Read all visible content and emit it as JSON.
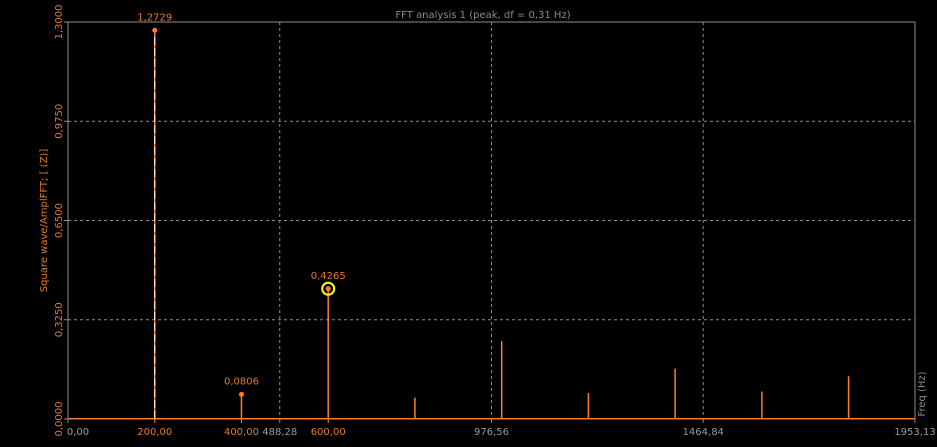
{
  "chart_data": {
    "type": "line",
    "title": "FFT analysis 1 (peak, df = 0,31 Hz)",
    "ylabel": "Square wave/AmplFFT; [ (Z)]",
    "xlabel": "Freq (Hz)",
    "xlim": [
      0,
      1953.13
    ],
    "ylim": [
      0,
      1.3
    ],
    "x_ticks": [
      "0,00",
      "488,28",
      "976,56",
      "1464,84",
      "1953,13"
    ],
    "x_tick_values": [
      0,
      488.28,
      976.56,
      1464.84,
      1953.13
    ],
    "x_peak_ticks": [
      "200,00",
      "400,00",
      "600,00"
    ],
    "x_peak_tick_values": [
      200,
      400,
      600
    ],
    "y_ticks": [
      "0,0000",
      "0,3250",
      "0,6500",
      "0,9750",
      "1,3000"
    ],
    "y_tick_values": [
      0,
      0.325,
      0.65,
      0.975,
      1.3
    ],
    "grid": true,
    "series": [
      {
        "color": "#ff7f1e",
        "x": [
          200,
          400,
          600,
          800,
          1000,
          1200,
          1400,
          1600,
          1800
        ],
        "values": [
          1.2729,
          0.0806,
          0.4265,
          0.07,
          0.255,
          0.085,
          0.165,
          0.09,
          0.14
        ]
      }
    ],
    "annotations": [
      {
        "x": 200,
        "y": 1.2729,
        "text": "1,2729"
      },
      {
        "x": 400,
        "y": 0.0806,
        "text": "0,0806"
      },
      {
        "x": 600,
        "y": 0.4265,
        "text": "0,4265",
        "highlight": true
      }
    ],
    "colors": {
      "background": "#000000",
      "grid": "#8c8c8c",
      "axis": "#8c8c8c",
      "series": "#ff7f1e",
      "highlight": "#ffff00"
    }
  }
}
